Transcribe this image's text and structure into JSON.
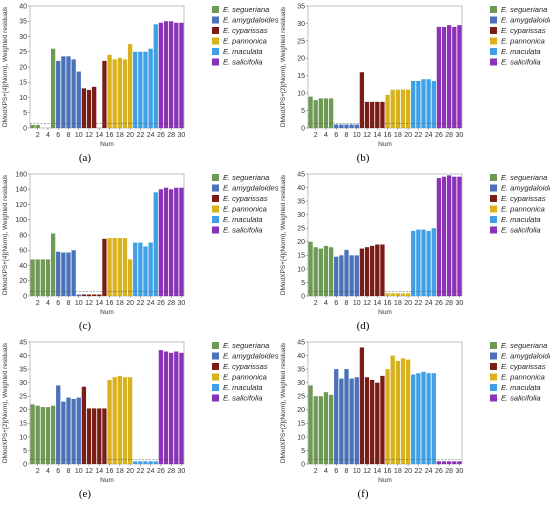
{
  "legend_labels": [
    "E. segueriana",
    "E. amygdaloides",
    "E. cyparissas",
    "E. pannonica",
    "E. maculata",
    "E. salicifolia"
  ],
  "series_colors": [
    "#6f9a55",
    "#4a72b8",
    "#7a1d17",
    "#d8b21c",
    "#3ea0e6",
    "#8a33b8"
  ],
  "chart_data": [
    {
      "type": "bar",
      "label": "(a)",
      "xlabel": "Num",
      "ylabel": "DModXPS+[4](Norm), Weighted residuals",
      "ylim": [
        0,
        40
      ],
      "yticks": [
        0,
        5,
        10,
        15,
        20,
        25,
        30,
        35,
        40
      ],
      "xticks": [
        2,
        4,
        6,
        8,
        10,
        12,
        14,
        16,
        18,
        20,
        22,
        24,
        26,
        28,
        30
      ],
      "values": [
        1,
        1,
        0,
        0,
        26,
        22,
        23.5,
        23.5,
        22.5,
        18.5,
        13,
        12.5,
        13.5,
        0,
        22,
        24,
        22.5,
        23,
        22.5,
        27.5,
        25,
        25,
        25,
        26,
        34,
        34.5,
        35,
        35,
        34.5,
        34.5
      ]
    },
    {
      "type": "bar",
      "label": "(b)",
      "xlabel": "Num",
      "ylabel": "DModXPS+[2](Norm), Weighted residuals",
      "ylim": [
        0,
        35
      ],
      "yticks": [
        0,
        5,
        10,
        15,
        20,
        25,
        30,
        35
      ],
      "xticks": [
        2,
        4,
        6,
        8,
        10,
        12,
        14,
        16,
        18,
        20,
        22,
        24,
        26,
        28,
        30
      ],
      "values": [
        9,
        8,
        8.5,
        8.5,
        8.5,
        1,
        1,
        1,
        1,
        1,
        16,
        7.5,
        7.5,
        7.5,
        7.5,
        9.5,
        11,
        11,
        11,
        11,
        13.5,
        13.5,
        14,
        14,
        13.5,
        29,
        29,
        29.5,
        29,
        29.5
      ]
    },
    {
      "type": "bar",
      "label": "(c)",
      "xlabel": "Num",
      "ylabel": "DModXPS+[4](Norm), Weighted residuals",
      "ylim": [
        0,
        160
      ],
      "yticks": [
        0,
        20,
        40,
        60,
        80,
        100,
        120,
        140,
        160
      ],
      "xticks": [
        2,
        4,
        6,
        8,
        10,
        12,
        14,
        16,
        18,
        20,
        22,
        24,
        26,
        28,
        30
      ],
      "values": [
        48,
        48,
        48,
        48,
        82,
        58,
        57,
        57,
        60,
        2,
        2,
        2,
        2,
        2,
        75,
        76,
        76,
        76,
        76,
        48,
        70,
        70,
        65,
        70,
        136,
        140,
        142,
        140,
        142,
        142
      ]
    },
    {
      "type": "bar",
      "label": "(d)",
      "xlabel": "Num",
      "ylabel": "DModXPS+[4](Norm), Weighted residuals",
      "ylim": [
        0,
        45
      ],
      "yticks": [
        0,
        5,
        10,
        15,
        20,
        25,
        30,
        35,
        40,
        45
      ],
      "xticks": [
        2,
        4,
        6,
        8,
        10,
        12,
        14,
        16,
        18,
        20,
        22,
        24,
        26,
        28,
        30
      ],
      "values": [
        20,
        18,
        17.5,
        18.5,
        18,
        14.5,
        15,
        17,
        15,
        15,
        17.5,
        18,
        18.5,
        19,
        19,
        1,
        1,
        1,
        1,
        1,
        24,
        24.5,
        24.5,
        24,
        25,
        43.5,
        44,
        44.5,
        44,
        44
      ]
    },
    {
      "type": "bar",
      "label": "(e)",
      "xlabel": "Num",
      "ylabel": "DModXPS+[2](Norm), Weighted residuals",
      "ylim": [
        0,
        45
      ],
      "yticks": [
        0,
        5,
        10,
        15,
        20,
        25,
        30,
        35,
        40,
        45
      ],
      "xticks": [
        2,
        4,
        6,
        8,
        10,
        12,
        14,
        16,
        18,
        20,
        22,
        24,
        26,
        28,
        30
      ],
      "values": [
        22,
        21.5,
        21,
        21,
        21.5,
        29,
        23,
        24.5,
        24,
        24.5,
        28.5,
        20.5,
        20.5,
        20.5,
        20.5,
        31,
        32,
        32.5,
        32,
        32,
        1,
        1,
        1,
        1,
        1,
        42,
        41.5,
        41,
        41.5,
        41
      ]
    },
    {
      "type": "bar",
      "label": "(f)",
      "xlabel": "Num",
      "ylabel": "DModXPS+[2](Norm), Weighted residuals",
      "ylim": [
        0,
        45
      ],
      "yticks": [
        0,
        5,
        10,
        15,
        20,
        25,
        30,
        35,
        40,
        45
      ],
      "xticks": [
        2,
        4,
        6,
        8,
        10,
        12,
        14,
        16,
        18,
        20,
        22,
        24,
        26,
        28,
        30
      ],
      "values": [
        29,
        25,
        25,
        26.5,
        25.5,
        35,
        31.5,
        35,
        31.5,
        32,
        43,
        32,
        31,
        30,
        32.5,
        35,
        40,
        38,
        39,
        38.5,
        33,
        33.5,
        34,
        33.5,
        33.5,
        1,
        1,
        1,
        1,
        1
      ]
    }
  ]
}
